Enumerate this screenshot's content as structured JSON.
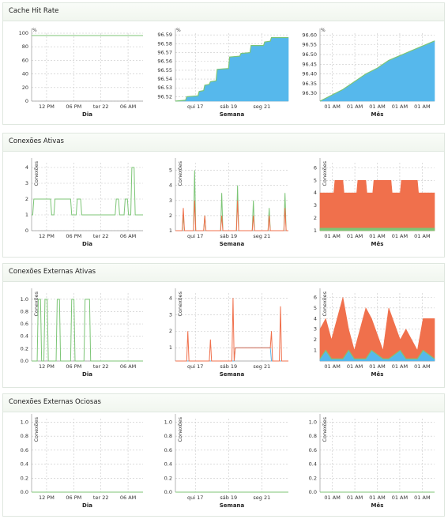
{
  "colors": {
    "green": "#7cc576",
    "blue": "#56b8ec",
    "orange": "#f0704c",
    "grid": "#c8c8c8"
  },
  "sections": [
    {
      "title": "Cache Hit Rate"
    },
    {
      "title": "Conexões Ativas"
    },
    {
      "title": "Conexões Externas Ativas"
    },
    {
      "title": "Conexões Externas Ociosas"
    }
  ],
  "chart_data": [
    {
      "type": "line",
      "section": 0,
      "xlabel": "Dia",
      "ylabel": "",
      "unit": "%",
      "xticks": [
        "12 PM",
        "06 PM",
        "ter 22",
        "06 AM"
      ],
      "yticks": [
        "0",
        "20",
        "40",
        "60",
        "80",
        "100"
      ],
      "ylim": [
        0,
        100
      ],
      "x": [
        0,
        1
      ],
      "series": [
        {
          "color": "green",
          "values": [
            96.56,
            96.56
          ]
        }
      ],
      "fill": false
    },
    {
      "type": "area",
      "section": 0,
      "xlabel": "Semana",
      "ylabel": "",
      "unit": "%",
      "xticks": [
        "qui 17",
        "sáb 19",
        "seg 21"
      ],
      "yticks": [
        "96.52",
        "96.53",
        "96.54",
        "96.55",
        "96.56",
        "96.57",
        "96.58",
        "96.59"
      ],
      "ylim": [
        96.515,
        96.592
      ],
      "x": [
        0,
        0.09,
        0.1,
        0.2,
        0.21,
        0.25,
        0.26,
        0.3,
        0.31,
        0.36,
        0.37,
        0.47,
        0.48,
        0.57,
        0.58,
        0.66,
        0.67,
        0.78,
        0.79,
        0.84,
        0.85,
        1
      ],
      "series": [
        {
          "color": "blue",
          "values": [
            96.515,
            96.516,
            96.52,
            96.521,
            96.526,
            96.527,
            96.533,
            96.534,
            96.537,
            96.538,
            96.551,
            96.552,
            96.565,
            96.566,
            96.569,
            96.57,
            96.578,
            96.578,
            96.582,
            96.583,
            96.587,
            96.587
          ]
        }
      ],
      "fill": true
    },
    {
      "type": "area",
      "section": 0,
      "xlabel": "Mês",
      "ylabel": "",
      "unit": "%",
      "xticks": [
        "01 AM",
        "01 AM",
        "01 AM",
        "01 AM",
        "01 AM"
      ],
      "yticks": [
        "96.30",
        "96.35",
        "96.40",
        "96.45",
        "96.50",
        "96.55",
        "96.60"
      ],
      "ylim": [
        96.26,
        96.61
      ],
      "x": [
        0,
        0.2,
        0.4,
        0.5,
        0.6,
        0.8,
        1
      ],
      "series": [
        {
          "color": "blue",
          "values": [
            96.26,
            96.32,
            96.4,
            96.43,
            96.47,
            96.52,
            96.57
          ]
        }
      ],
      "fill": true
    },
    {
      "type": "line",
      "section": 1,
      "xlabel": "Dia",
      "ylabel": "Conexões",
      "xticks": [
        "12 PM",
        "06 PM",
        "ter 22",
        "06 AM"
      ],
      "yticks": [
        "0",
        "1",
        "2",
        "3",
        "4"
      ],
      "ylim": [
        0,
        4.3
      ],
      "x": [
        0,
        0.01,
        0.02,
        0.17,
        0.18,
        0.2,
        0.21,
        0.35,
        0.36,
        0.4,
        0.41,
        0.44,
        0.45,
        0.75,
        0.76,
        0.78,
        0.79,
        0.83,
        0.84,
        0.86,
        0.87,
        0.89,
        0.9,
        0.92,
        0.93,
        0.96,
        0.97,
        1
      ],
      "series": [
        {
          "color": "green",
          "values": [
            1,
            1,
            2,
            2,
            1,
            1,
            2,
            2,
            1,
            1,
            2,
            2,
            1,
            1,
            2,
            2,
            1,
            1,
            2,
            2,
            1,
            1,
            4,
            4,
            1,
            1,
            1,
            1
          ]
        }
      ],
      "fill": false
    },
    {
      "type": "line",
      "section": 1,
      "xlabel": "Semana",
      "ylabel": "Conexões",
      "xticks": [
        "qui 17",
        "sáb 19",
        "seg 21"
      ],
      "yticks": [
        "1",
        "2",
        "3",
        "4",
        "5"
      ],
      "ylim": [
        1,
        5.5
      ],
      "x": [
        0,
        0.06,
        0.07,
        0.08,
        0.16,
        0.17,
        0.18,
        0.25,
        0.26,
        0.27,
        0.4,
        0.41,
        0.42,
        0.54,
        0.55,
        0.56,
        0.68,
        0.69,
        0.7,
        0.82,
        0.83,
        0.84,
        0.96,
        0.97,
        0.98,
        1
      ],
      "series": [
        {
          "color": "green",
          "values": [
            1,
            1,
            2,
            1,
            1,
            5,
            1,
            1,
            2,
            1,
            1,
            3.5,
            1,
            1,
            4,
            1,
            1,
            3,
            1,
            1,
            2.5,
            1,
            1,
            3.5,
            1,
            1
          ]
        },
        {
          "color": "orange",
          "values": [
            1,
            1,
            2.5,
            1,
            1,
            3,
            1,
            1,
            2,
            1,
            1,
            2,
            1,
            1,
            3,
            1,
            1,
            2,
            1,
            1,
            2,
            1,
            1,
            2.5,
            1,
            1
          ]
        }
      ],
      "fill": false
    },
    {
      "type": "area",
      "section": 1,
      "xlabel": "Mês",
      "ylabel": "Conexões",
      "xticks": [
        "01 AM",
        "01 AM",
        "01 AM",
        "01 AM",
        "01 AM"
      ],
      "yticks": [
        "1",
        "2",
        "3",
        "4",
        "5",
        "6"
      ],
      "ylim": [
        1,
        6.4
      ],
      "x": [
        0,
        0.12,
        0.13,
        0.2,
        0.21,
        0.32,
        0.33,
        0.4,
        0.41,
        0.46,
        0.47,
        0.62,
        0.63,
        0.7,
        0.71,
        0.85,
        0.86,
        1
      ],
      "series": [
        {
          "color": "orange",
          "values": [
            4,
            4,
            5,
            5,
            4,
            4,
            5,
            5,
            4,
            4,
            5,
            5,
            4,
            4,
            5,
            5,
            4,
            4
          ]
        },
        {
          "color": "green",
          "values": [
            1.2,
            1.2,
            1.2,
            1.2,
            1.2,
            1.2,
            1.2,
            1.2,
            1.2,
            1.2,
            1.2,
            1.2,
            1.2,
            1.2,
            1.2,
            1.2,
            1.2,
            1.2
          ]
        }
      ],
      "fill": true
    },
    {
      "type": "line",
      "section": 2,
      "xlabel": "Dia",
      "ylabel": "Conexões",
      "xticks": [
        "12 PM",
        "06 PM",
        "ter 22",
        "06 AM"
      ],
      "yticks": [
        "0.0",
        "0.2",
        "0.4",
        "0.6",
        "0.8",
        "1.0"
      ],
      "ylim": [
        0,
        1.1
      ],
      "x": [
        0,
        0.05,
        0.06,
        0.08,
        0.09,
        0.11,
        0.12,
        0.14,
        0.15,
        0.22,
        0.23,
        0.25,
        0.26,
        0.35,
        0.36,
        0.38,
        0.39,
        0.47,
        0.48,
        0.52,
        0.53,
        1
      ],
      "series": [
        {
          "color": "green",
          "values": [
            0,
            0,
            1,
            1,
            0,
            0,
            1,
            1,
            0,
            0,
            1,
            1,
            0,
            0,
            1,
            1,
            0,
            0,
            1,
            1,
            0,
            0
          ]
        }
      ],
      "fill": false
    },
    {
      "type": "area",
      "section": 2,
      "xlabel": "Semana",
      "ylabel": "Conexões",
      "xticks": [
        "qui 17",
        "sáb 19",
        "seg 21"
      ],
      "yticks": [
        "1",
        "2",
        "3",
        "4"
      ],
      "ylim": [
        0.2,
        4.3
      ],
      "x": [
        0,
        0.1,
        0.11,
        0.12,
        0.3,
        0.31,
        0.32,
        0.5,
        0.51,
        0.52,
        0.53,
        0.84,
        0.85,
        0.86,
        0.92,
        0.93,
        0.94,
        1
      ],
      "series": [
        {
          "color": "blue",
          "values": [
            0.2,
            0.2,
            0.2,
            0.2,
            0.2,
            0.2,
            0.2,
            0.2,
            0.2,
            0.2,
            1,
            1,
            0.2,
            0.2,
            0.2,
            0.2,
            0.2,
            0.2
          ]
        },
        {
          "color": "orange",
          "values": [
            0.2,
            0.2,
            2,
            0.2,
            0.2,
            1.5,
            0.2,
            0.2,
            4,
            0.2,
            1,
            1,
            2,
            0.2,
            0.2,
            3.5,
            0.2,
            0.2
          ]
        }
      ],
      "fill": false
    },
    {
      "type": "area",
      "section": 2,
      "xlabel": "Mês",
      "ylabel": "Conexões",
      "xticks": [
        "01 AM",
        "01 AM",
        "01 AM",
        "01 AM",
        "01 AM"
      ],
      "yticks": [
        "1",
        "2",
        "3",
        "4",
        "5",
        "6"
      ],
      "ylim": [
        0,
        6.4
      ],
      "x": [
        0,
        0.05,
        0.1,
        0.2,
        0.25,
        0.3,
        0.4,
        0.45,
        0.55,
        0.6,
        0.7,
        0.75,
        0.85,
        0.9,
        1
      ],
      "series": [
        {
          "color": "orange",
          "values": [
            3,
            4,
            2,
            6,
            3,
            1,
            5,
            4,
            1,
            5,
            2,
            3,
            1,
            4,
            4
          ]
        },
        {
          "color": "blue",
          "values": [
            0.2,
            1,
            0.2,
            0.2,
            1,
            0.2,
            0.2,
            1,
            0.2,
            0.2,
            1,
            0.2,
            0.2,
            1,
            0.2
          ]
        }
      ],
      "fill": true
    },
    {
      "type": "line",
      "section": 3,
      "xlabel": "Dia",
      "ylabel": "Conexões",
      "xticks": [
        "12 PM",
        "06 PM",
        "ter 22",
        "06 AM"
      ],
      "yticks": [
        "0.0",
        "0.2",
        "0.4",
        "0.6",
        "0.8",
        "1.0"
      ],
      "ylim": [
        0,
        1.05
      ],
      "x": [
        0,
        1
      ],
      "series": [
        {
          "color": "green",
          "values": [
            0,
            0
          ]
        }
      ],
      "fill": false
    },
    {
      "type": "line",
      "section": 3,
      "xlabel": "Semana",
      "ylabel": "Conexões",
      "xticks": [
        "qui 17",
        "sáb 19",
        "seg 21"
      ],
      "yticks": [
        "0.0",
        "0.2",
        "0.4",
        "0.6",
        "0.8",
        "1.0"
      ],
      "ylim": [
        0,
        1.05
      ],
      "x": [
        0,
        1
      ],
      "series": [
        {
          "color": "green",
          "values": [
            0,
            0
          ]
        }
      ],
      "fill": false
    },
    {
      "type": "line",
      "section": 3,
      "xlabel": "Mês",
      "ylabel": "Conexões",
      "xticks": [
        "01 AM",
        "01 AM",
        "01 AM",
        "01 AM",
        "01 AM"
      ],
      "yticks": [
        "0.0",
        "0.2",
        "0.4",
        "0.6",
        "0.8",
        "1.0"
      ],
      "ylim": [
        0,
        1.05
      ],
      "x": [
        0,
        1
      ],
      "series": [
        {
          "color": "green",
          "values": [
            0,
            0
          ]
        }
      ],
      "fill": false
    }
  ]
}
